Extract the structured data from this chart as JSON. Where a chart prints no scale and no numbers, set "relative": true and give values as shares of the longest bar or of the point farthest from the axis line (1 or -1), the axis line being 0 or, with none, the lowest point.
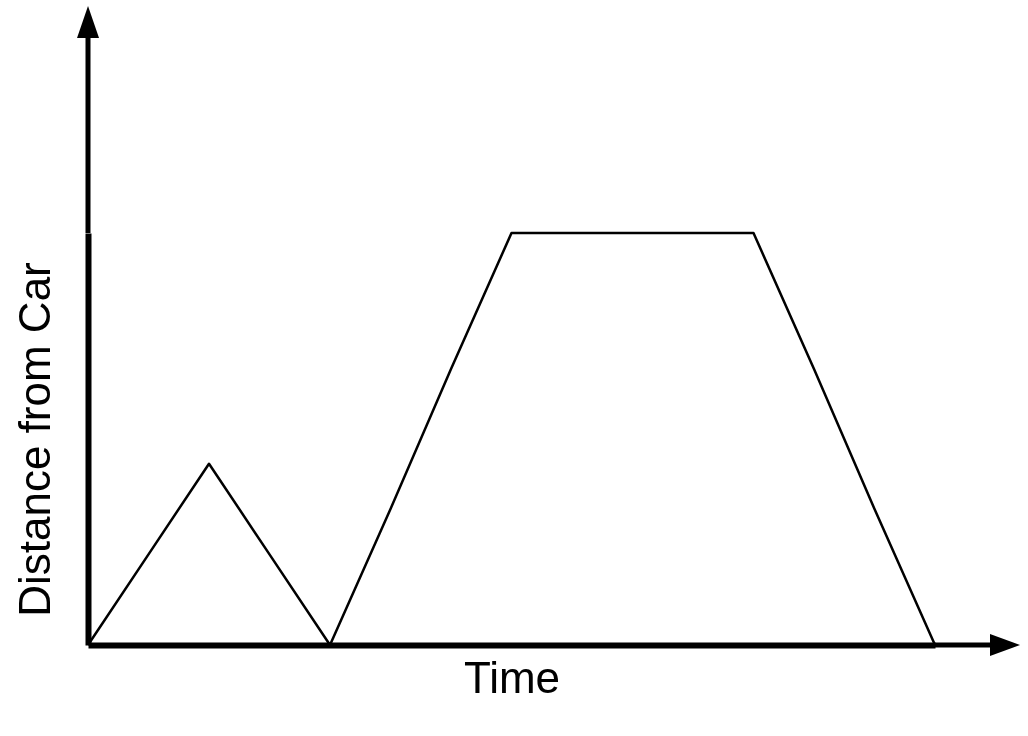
{
  "chart_data": {
    "type": "line",
    "xlabel": "Time",
    "ylabel": "Distance from Car",
    "relative": true,
    "tick_labels": false,
    "grid": false,
    "legend": false,
    "categories": [
      null,
      null,
      null,
      null,
      null,
      null,
      null,
      null,
      null,
      null,
      null,
      null,
      null,
      null,
      null
    ],
    "series": [
      {
        "color": "#000000",
        "values": [
          0,
          0.22,
          0.44,
          0.22,
          0,
          0.33,
          0.67,
          1,
          1,
          1,
          1,
          1,
          0.67,
          0.33,
          0
        ]
      }
    ]
  }
}
